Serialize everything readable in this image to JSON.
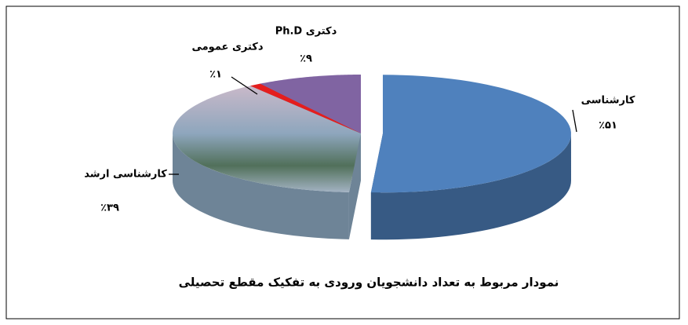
{
  "chart_data": {
    "type": "pie3d",
    "title": "نمودار مربوط به تعداد دانشجویان ورودی به تفکیک مقطع تحصیلی",
    "categories": [
      "کارشناسی",
      "کارشناسی ارشد",
      "دکتری عمومی",
      "دکتری Ph.D"
    ],
    "values": [
      51,
      39,
      1,
      9
    ],
    "value_labels": [
      "٪۵۱",
      "٪۳۹",
      "٪۱",
      "٪۹"
    ],
    "colors": [
      "#4f81bd",
      "#9aaabb",
      "#e41e1e",
      "#8064a2"
    ]
  }
}
